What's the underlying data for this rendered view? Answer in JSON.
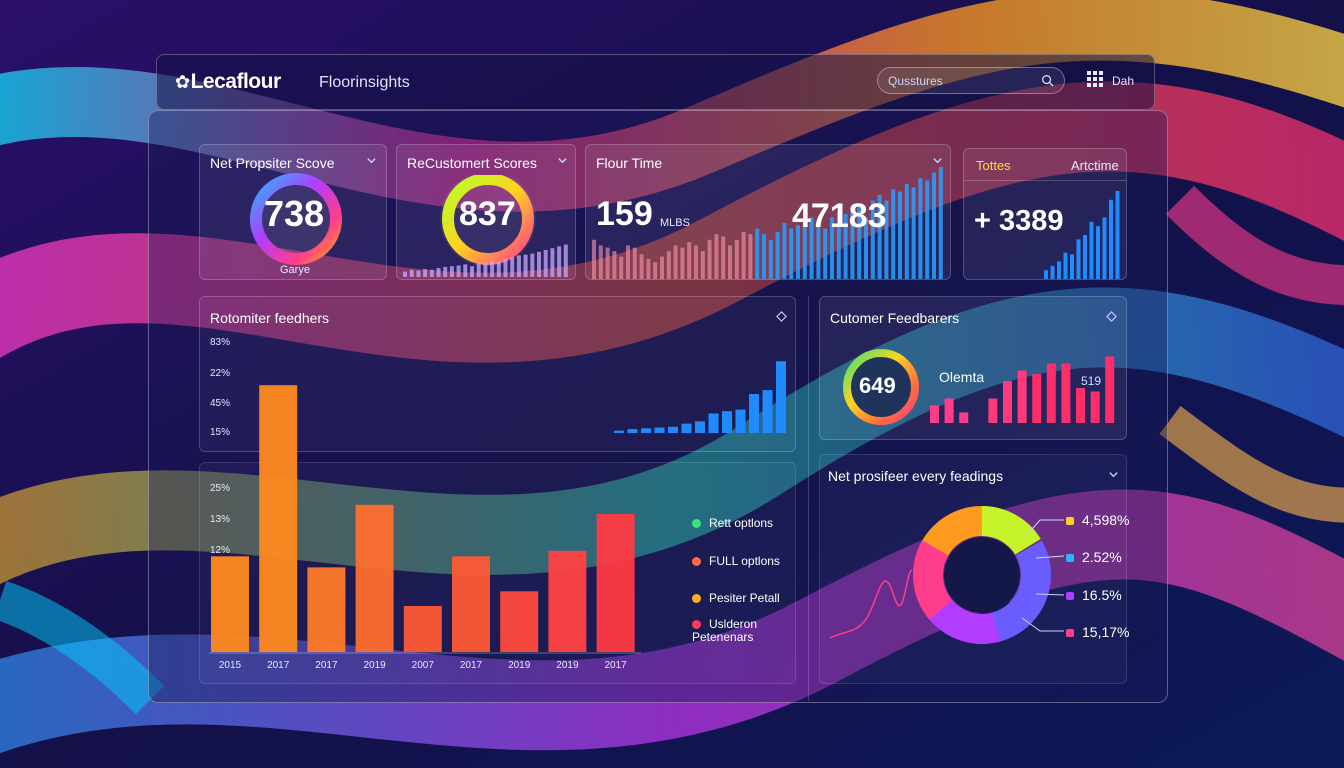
{
  "header": {
    "logo": "Lecaflour",
    "app_title": "Floorinsights",
    "search_placeholder": "Qusstures",
    "link": "Dah"
  },
  "cards": {
    "nps": {
      "title": "Net Propsiter Scove",
      "value": "738",
      "sub": "Garye"
    },
    "customer": {
      "title": "ReCustomert Scores",
      "value": "837"
    },
    "flour": {
      "title": "Flour Time",
      "value_a": "159",
      "unit_a": "MLBS",
      "value_b": "47183"
    },
    "totals": {
      "tab_a": "Tottes",
      "tab_b": "Artctime",
      "value": "+ 3389"
    }
  },
  "main_chart": {
    "title": "Rotomiter feedhers",
    "upper_ticks": [
      "83%",
      "22%",
      "45%",
      "15%"
    ],
    "lower_ticks": [
      "25%",
      "13%",
      "12%"
    ],
    "legend": [
      {
        "label": "Rett optlons",
        "color": "#3fe27a"
      },
      {
        "label": "FULL optlons",
        "color": "#ff6a3d"
      },
      {
        "label": "Pesiter Petall",
        "color": "#ffb020"
      },
      {
        "label": "Uslderon\nPetenenars",
        "color": "#ff3a55"
      }
    ]
  },
  "chart_data": {
    "type": "bar",
    "categories": [
      "2015",
      "2017",
      "2017",
      "2019",
      "2007",
      "2017",
      "2019",
      "2019",
      "2017"
    ],
    "values": [
      52,
      145,
      46,
      80,
      25,
      52,
      33,
      55,
      75
    ],
    "colors": [
      "#ff8a1f",
      "#ff8a1f",
      "#ff7a28",
      "#ff6e2e",
      "#ff5a35",
      "#ff5a35",
      "#ff4a3c",
      "#ff4242",
      "#ff3a45"
    ],
    "xlabel": "",
    "ylabel": ""
  },
  "feedback": {
    "title": "Cutomer Feedbarers",
    "gauge_value": "649",
    "label": "Olemta",
    "side_value": "519"
  },
  "donut": {
    "title": "Net prosifeer every feadings",
    "items": [
      {
        "label": "4,598%",
        "color": "#ffd21f"
      },
      {
        "label": "2.52%",
        "color": "#2ab4ff"
      },
      {
        "label": "16.5%",
        "color": "#b23cff"
      },
      {
        "label": "15,17%",
        "color": "#ff3d8b"
      }
    ]
  }
}
